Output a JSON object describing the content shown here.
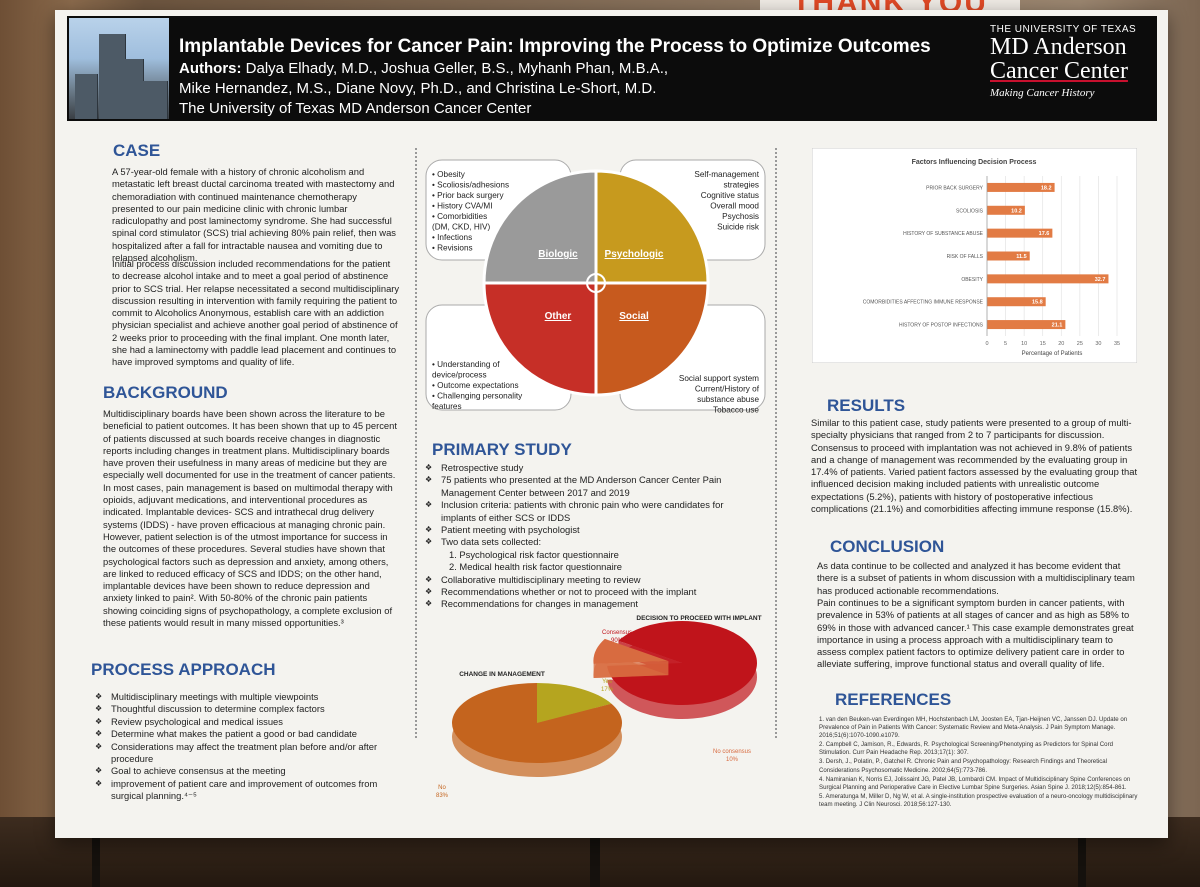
{
  "banner": "THANK YOU",
  "header": {
    "title": "Implantable Devices for Cancer Pain: Improving the Process to Optimize Outcomes",
    "authors_label": "Authors:",
    "authors_line1": "Dalya Elhady, M.D., Joshua Geller, B.S., Myhanh Phan, M.B.A.,",
    "authors_line2": "Mike Hernandez, M.S., Diane Novy, Ph.D., and Christina Le-Short, M.D.",
    "institution": "The University of Texas MD Anderson Cancer Center",
    "logo_top": "THE UNIVERSITY OF TEXAS",
    "logo_name1": "MD Anderson",
    "logo_name2": "Cancer Center",
    "logo_tagline": "Making Cancer History"
  },
  "case": {
    "heading": "CASE",
    "para1": "A 57-year-old female with a history of chronic alcoholism and metastatic left breast ductal carcinoma treated with mastectomy and chemoradiation with continued maintenance chemotherapy presented to our pain medicine clinic with chronic lumbar radiculopathy and post laminectomy syndrome. She had successful spinal cord stimulator (SCS) trial achieving 80% pain relief, then was hospitalized after a fall for intractable nausea and vomiting due to relapsed alcoholism.",
    "para2": "Initial process discussion included recommendations for the patient to decrease alcohol intake and to meet a goal period of abstinence prior to SCS trial. Her relapse necessitated a second multidisciplinary discussion resulting in intervention with family requiring the patient to commit to Alcoholics Anonymous, establish care with an addiction physician specialist and achieve another goal period of abstinence of 2 weeks prior to proceeding with the final implant. One month later, she had a laminectomy with paddle lead placement and continues to have improved symptoms and quality of life."
  },
  "background": {
    "heading": "BACKGROUND",
    "text": "Multidisciplinary boards have been shown across the literature to be beneficial to patient outcomes. It has been shown that up to 45 percent of patients discussed at such boards receive changes in diagnostic reports including changes in treatment plans. Multidisciplinary boards have proven their usefulness in many areas of medicine but they are especially well documented for use in the treatment of cancer patients. In most cases, pain management is based on multimodal therapy with opioids, adjuvant medications, and interventional procedures as indicated. Implantable devices- SCS and intrathecal drug delivery systems (IDDS) - have proven efficacious at managing chronic pain. However, patient selection is of the utmost importance for success in the outcomes of these procedures. Several studies have shown that psychological factors such as depression and anxiety, among others, are linked to reduced efficacy of SCS and IDDS; on the other hand, implantable devices have been shown to reduce depression and anxiety linked to pain². With 50-80% of the chronic pain patients showing coinciding signs of psychopathology, a complete exclusion of these patients would result in many missed opportunities.³"
  },
  "process": {
    "heading": "PROCESS APPROACH",
    "items": [
      "Multidisciplinary meetings with multiple viewpoints",
      "Thoughtful discussion to determine complex factors",
      "Review psychological and medical issues",
      "Determine  what makes the patient a good or bad candidate",
      "Considerations may affect the treatment plan before and/or after procedure",
      "Goal to achieve consensus at the meeting",
      "improvement of patient care and improvement of outcomes from surgical planning.⁴⁻⁵"
    ]
  },
  "diagram": {
    "quadrants": [
      "Biologic",
      "Psychologic",
      "Other",
      "Social"
    ],
    "colors": [
      "#9a9a9a",
      "#c79a1e",
      "#c62f27",
      "#c75a1e"
    ],
    "biologic_items": [
      "Obesity",
      "Scoliosis/adhesions",
      "Prior back surgery",
      "History CVA/MI",
      "Comorbidities",
      "(DM, CKD, HIV)",
      "Infections",
      "Revisions"
    ],
    "psychologic_items": [
      "Self-management",
      "strategies",
      "Cognitive status",
      "Overall mood",
      "Psychosis",
      "Suicide risk"
    ],
    "other_items": [
      "Understanding of",
      "device/process",
      "Outcome expectations",
      "Challenging personality",
      "features"
    ],
    "social_items": [
      "Social support system",
      "Current/History of",
      "substance abuse",
      "Tobacco use"
    ]
  },
  "primary": {
    "heading": "PRIMARY STUDY",
    "items": [
      "Retrospective study",
      "75 patients who presented at the MD Anderson Cancer Center Pain Management Center between 2017 and 2019",
      "Inclusion criteria: patients with chronic pain who were candidates for implants of either SCS or IDDS",
      "Patient meeting with psychologist",
      "Two data sets collected:",
      "Collaborative multidisciplinary meeting to review",
      "Recommendations whether or not to proceed with the implant",
      "Recommendations for changes in management"
    ],
    "subitems": [
      "1. Psychological risk factor questionnaire",
      "2. Medical health risk factor questionnaire"
    ]
  },
  "chart_data": [
    {
      "type": "bar",
      "title": "Factors Influencing Decision Process",
      "xlabel": "Percentage of Patients",
      "ylabel": "",
      "orientation": "horizontal",
      "categories": [
        "PRIOR BACK SURGERY",
        "SCOLIOSIS",
        "HISTORY OF SUBSTANCE ABUSE",
        "RISK OF FALLS",
        "OBESITY",
        "COMORBIDITIES AFFECTING IMMUNE RESPONSE",
        "HISTORY OF POSTOP INFECTIONS"
      ],
      "values": [
        18.2,
        10.2,
        17.6,
        11.5,
        32.7,
        15.8,
        21.1
      ],
      "xlim": [
        0,
        35
      ],
      "ticks": [
        "0",
        "5",
        "10",
        "15",
        "20",
        "25",
        "30",
        "35"
      ],
      "color": "#e27b44"
    },
    {
      "type": "pie",
      "title": "DECISION TO PROCEED WITH IMPLANT",
      "labels": [
        "Consensus",
        "No consensus"
      ],
      "values": [
        90,
        10
      ],
      "value_labels": [
        "90%",
        "10%"
      ],
      "colors": [
        "#c0141b",
        "#d86b40"
      ]
    },
    {
      "type": "pie",
      "title": "CHANGE IN MANAGEMENT",
      "labels": [
        "Yes",
        "No"
      ],
      "values": [
        17,
        83
      ],
      "value_labels": [
        "17%",
        "83%"
      ],
      "colors": [
        "#b5a51f",
        "#c4641e"
      ]
    }
  ],
  "results": {
    "heading": "RESULTS",
    "text": "Similar to this patient case, study patients were presented to a group of multi-specialty physicians that ranged from 2 to 7 participants for discussion. Consensus to proceed with implantation was not achieved in 9.8% of patients and a change of management was recommended by the evaluating group in 17.4% of patients. Varied patient factors assessed by the evaluating group that influenced decision making included patients with unrealistic outcome expectations (5.2%), patients with history of postoperative infectious complications (21.1%) and comorbidities affecting immune response (15.8%)."
  },
  "conclusion": {
    "heading": "CONCLUSION",
    "para1": "As data continue to be collected and analyzed it has become evident that there is a subset of patients in whom discussion with a multidisciplinary team has produced actionable recommendations.",
    "para2": "Pain continues to be a significant symptom burden in cancer patients, with prevalence in 53% of patients at all stages of cancer and as high as 58% to 69% in those with advanced cancer.¹ This case example demonstrates great importance in using a process approach with a multidisciplinary team to assess complex patient factors to optimize delivery patient care in order to alleviate suffering, improve functional status and overall quality of life."
  },
  "references": {
    "heading": "REFERENCES",
    "items": [
      "1. van den Beuken-van Everdingen MH, Hochstenbach LM, Joosten EA, Tjan-Heijnen VC, Janssen DJ. Update on Prevalence of Pain in Patients With Cancer: Systematic Review and Meta-Analysis. J Pain Symptom Manage. 2016;51(6):1070-1090.e1079.",
      "2. Campbell C, Jamison, R., Edwards, R. Psychological Screening/Phenotyping as Predictors for Spinal Cord Stimulation. Curr Pain Headache Rep. 2013;17(1): 307.",
      "3. Dersh, J., Polatin, P., Gatchel R. Chronic Pain and Psychopathology: Research Findings and Theoretical Considerations Psychosomatic Medicine. 2002;64(5):773-786.",
      "4. Namiranian K, Norris EJ, Jolissaint JG, Patel JB, Lombardi CM. Impact of Multidisciplinary Spine Conferences on Surgical Planning and Perioperative Care in Elective Lumbar Spine Surgeries. Asian Spine J. 2018;12(5):854-861.",
      "5. Ameratunga M, Miller D, Ng W, et al. A single-institution prospective evaluation of a neuro-oncology multidisciplinary team meeting. J Clin Neurosci. 2018;56:127-130."
    ]
  }
}
